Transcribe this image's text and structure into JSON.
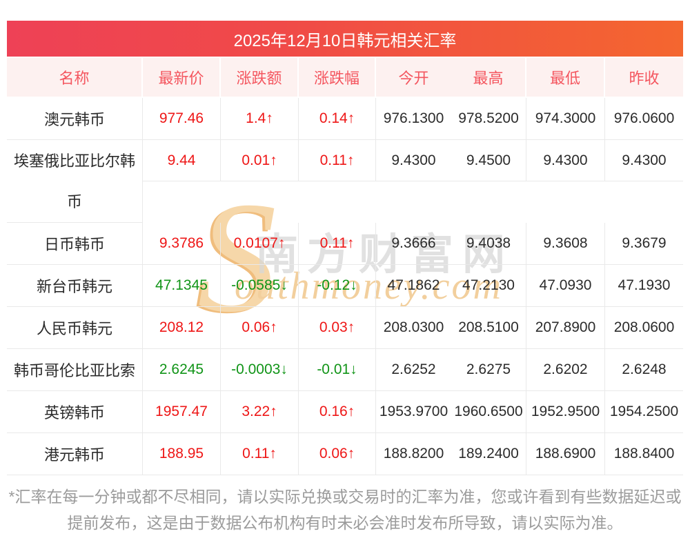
{
  "page": {
    "title": "2025年12月10日韩元相关汇率"
  },
  "table": {
    "columns": [
      "名称",
      "最新价",
      "涨跌额",
      "涨跌幅",
      "今开",
      "最高",
      "最低",
      "昨收"
    ],
    "rows": [
      {
        "name": "澳元韩币",
        "latest": "977.46",
        "change": "1.4↑",
        "change_pct": "0.14↑",
        "open": "976.1300",
        "high": "978.5200",
        "low": "974.3000",
        "prev_close": "976.0600",
        "trend": "up"
      },
      {
        "name": "埃塞俄比亚比尔韩币",
        "latest": "9.44",
        "change": "0.01↑",
        "change_pct": "0.11↑",
        "open": "9.4300",
        "high": "9.4500",
        "low": "9.4300",
        "prev_close": "9.4300",
        "trend": "up"
      },
      {
        "name": "日币韩币",
        "latest": "9.3786",
        "change": "0.0107↑",
        "change_pct": "0.11↑",
        "open": "9.3666",
        "high": "9.4038",
        "low": "9.3608",
        "prev_close": "9.3679",
        "trend": "up"
      },
      {
        "name": "新台币韩元",
        "latest": "47.1345",
        "change": "-0.0585↓",
        "change_pct": "-0.12↓",
        "open": "47.1862",
        "high": "47.2130",
        "low": "47.0930",
        "prev_close": "47.1930",
        "trend": "down"
      },
      {
        "name": "人民币韩元",
        "latest": "208.12",
        "change": "0.06↑",
        "change_pct": "0.03↑",
        "open": "208.0300",
        "high": "208.5100",
        "low": "207.8900",
        "prev_close": "208.0600",
        "trend": "up"
      },
      {
        "name": "韩币哥伦比亚比索",
        "latest": "2.6245",
        "change": "-0.0003↓",
        "change_pct": "-0.01↓",
        "open": "2.6252",
        "high": "2.6275",
        "low": "2.6202",
        "prev_close": "2.6248",
        "trend": "down"
      },
      {
        "name": "英镑韩币",
        "latest": "1957.47",
        "change": "3.22↑",
        "change_pct": "0.16↑",
        "open": "1953.9700",
        "high": "1960.6500",
        "low": "1952.9500",
        "prev_close": "1954.2500",
        "trend": "up"
      },
      {
        "name": "港元韩币",
        "latest": "188.95",
        "change": "0.11↑",
        "change_pct": "0.06↑",
        "open": "188.8200",
        "high": "189.2400",
        "low": "188.6900",
        "prev_close": "188.8400",
        "trend": "up"
      }
    ]
  },
  "watermark": {
    "initial": "S",
    "cn_text": "南方财富网",
    "en_text": "outhmoney.com"
  },
  "footer": {
    "disclaimer": "*汇率在每一分钟或都不尽相同，请以实际兑换或交易时的汇率为准，您或许看到有些数据延迟或提前发布，这是由于数据公布机构有时未必会准时发布所导致，请以实际为准。"
  },
  "colors": {
    "up": "#ee1616",
    "down": "#109417",
    "accent_gradient_left": "#ee4156",
    "accent_gradient_right": "#f4662f",
    "header_bg": "#fdf1f0",
    "header_text": "#f4565f",
    "border": "#e9e9e9",
    "footer_text": "#9b9b9b"
  }
}
